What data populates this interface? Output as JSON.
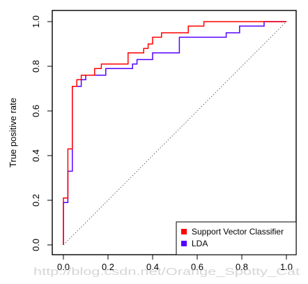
{
  "chart_data": {
    "type": "line",
    "subtype": "roc-step",
    "title": "",
    "xlabel": "",
    "ylabel": "True positive rate",
    "xlim": [
      0,
      1
    ],
    "ylim": [
      0,
      1
    ],
    "xticks": [
      "0.0",
      "0.2",
      "0.4",
      "0.6",
      "0.8",
      "1.0"
    ],
    "yticks": [
      "0.0",
      "0.2",
      "0.4",
      "0.6",
      "0.8",
      "1.0"
    ],
    "grid": false,
    "legend_position": "bottom-right",
    "diagonal_reference": true,
    "series": [
      {
        "name": "Support Vector Classifier",
        "color": "#ff0000",
        "points": [
          [
            0.0,
            0.0
          ],
          [
            0.0,
            0.21
          ],
          [
            0.02,
            0.21
          ],
          [
            0.02,
            0.43
          ],
          [
            0.04,
            0.43
          ],
          [
            0.04,
            0.71
          ],
          [
            0.06,
            0.71
          ],
          [
            0.06,
            0.74
          ],
          [
            0.08,
            0.74
          ],
          [
            0.08,
            0.76
          ],
          [
            0.14,
            0.76
          ],
          [
            0.14,
            0.79
          ],
          [
            0.17,
            0.79
          ],
          [
            0.17,
            0.81
          ],
          [
            0.29,
            0.81
          ],
          [
            0.29,
            0.86
          ],
          [
            0.36,
            0.86
          ],
          [
            0.36,
            0.88
          ],
          [
            0.38,
            0.88
          ],
          [
            0.38,
            0.9
          ],
          [
            0.4,
            0.9
          ],
          [
            0.4,
            0.93
          ],
          [
            0.44,
            0.93
          ],
          [
            0.44,
            0.95
          ],
          [
            0.56,
            0.95
          ],
          [
            0.56,
            0.98
          ],
          [
            0.63,
            0.98
          ],
          [
            0.63,
            1.0
          ],
          [
            1.0,
            1.0
          ]
        ]
      },
      {
        "name": "LDA",
        "color": "#5500ff",
        "points": [
          [
            0.0,
            0.0
          ],
          [
            0.0,
            0.19
          ],
          [
            0.02,
            0.19
          ],
          [
            0.02,
            0.33
          ],
          [
            0.04,
            0.33
          ],
          [
            0.04,
            0.71
          ],
          [
            0.08,
            0.71
          ],
          [
            0.08,
            0.74
          ],
          [
            0.1,
            0.74
          ],
          [
            0.1,
            0.76
          ],
          [
            0.19,
            0.76
          ],
          [
            0.19,
            0.79
          ],
          [
            0.31,
            0.79
          ],
          [
            0.31,
            0.81
          ],
          [
            0.33,
            0.81
          ],
          [
            0.33,
            0.83
          ],
          [
            0.4,
            0.83
          ],
          [
            0.4,
            0.86
          ],
          [
            0.52,
            0.86
          ],
          [
            0.52,
            0.93
          ],
          [
            0.73,
            0.93
          ],
          [
            0.73,
            0.95
          ],
          [
            0.79,
            0.95
          ],
          [
            0.79,
            0.98
          ],
          [
            0.9,
            0.98
          ],
          [
            0.9,
            1.0
          ],
          [
            1.0,
            1.0
          ]
        ]
      }
    ]
  },
  "watermark": {
    "text": "http://blog.csdn.net/Orange_Spotty_Cat"
  }
}
